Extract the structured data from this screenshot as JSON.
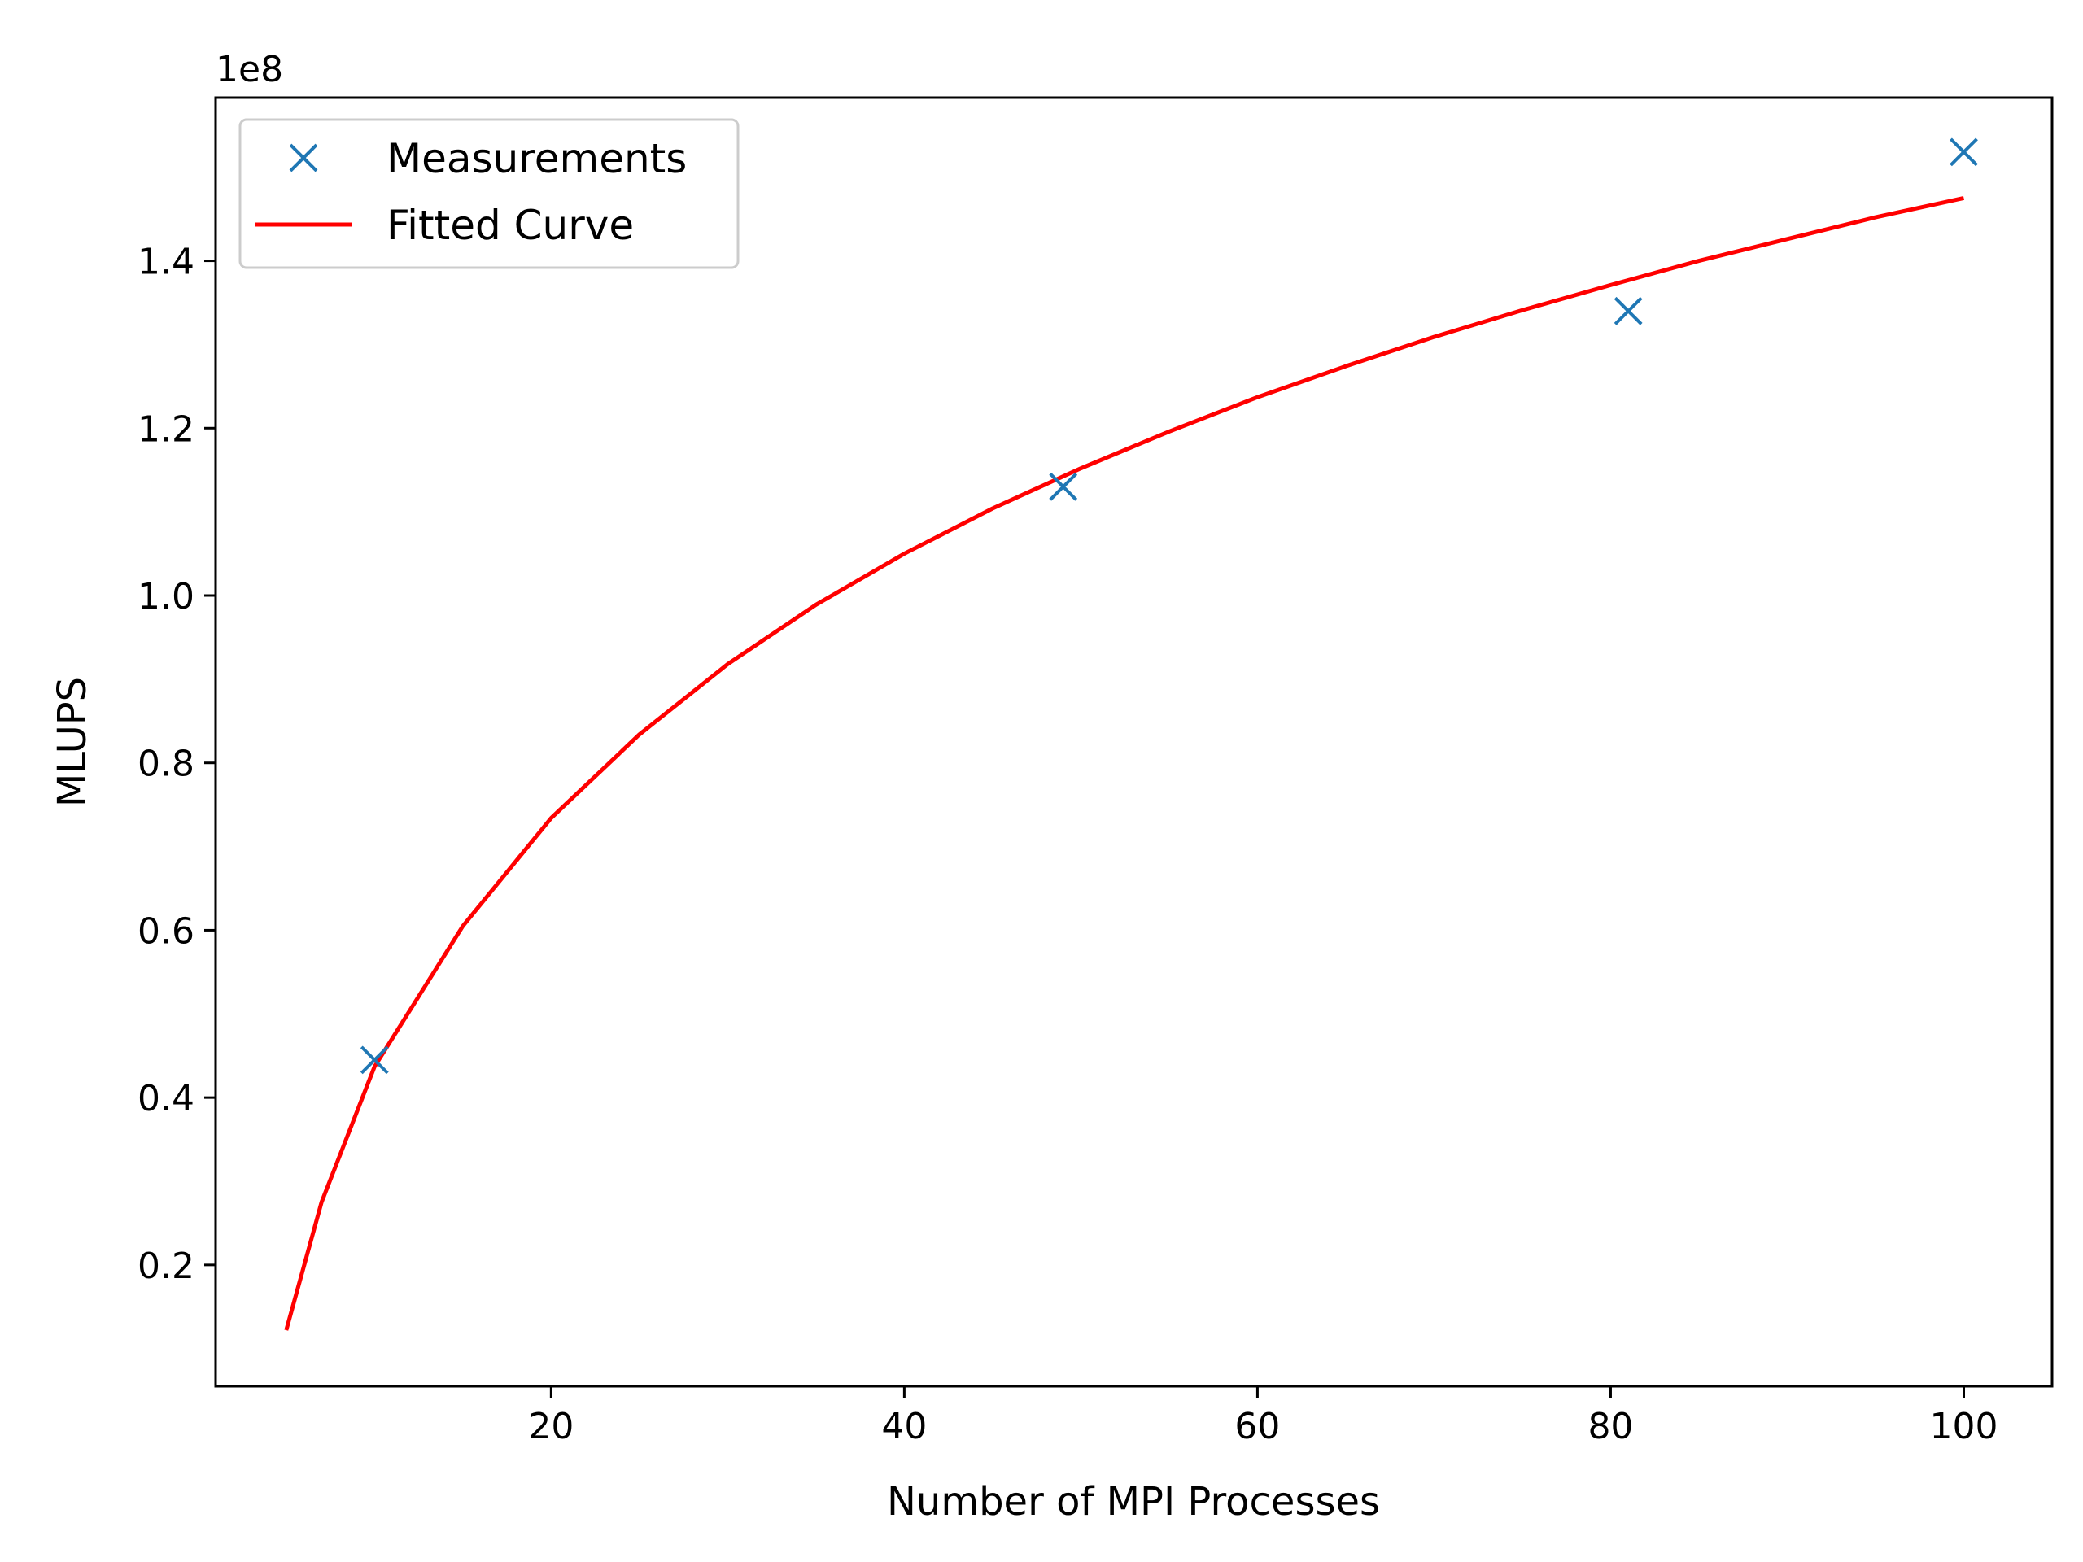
{
  "chart_data": {
    "type": "line",
    "title": "",
    "xlabel": "Number of MPI Processes",
    "ylabel": "MLUPS",
    "y_offset_label": "1e8",
    "xlim": [
      1,
      105
    ],
    "ylim": [
      0.055,
      1.595
    ],
    "x_ticks": [
      20,
      40,
      60,
      80,
      100
    ],
    "x_tick_labels": [
      "20",
      "40",
      "60",
      "80",
      "100"
    ],
    "y_ticks": [
      0.2,
      0.4,
      0.6,
      0.8,
      1.0,
      1.2,
      1.4
    ],
    "y_tick_labels": [
      "0.2",
      "0.4",
      "0.6",
      "0.8",
      "1.0",
      "1.2",
      "1.4"
    ],
    "grid": false,
    "legend_position": "top-left",
    "series": [
      {
        "name": "Measurements",
        "kind": "scatter",
        "marker": "x",
        "color": "#1f77b4",
        "x": [
          10,
          49,
          81,
          100
        ],
        "y": [
          0.445,
          1.13,
          1.34,
          1.53
        ]
      },
      {
        "name": "Fitted Curve",
        "kind": "line",
        "color": "#ff0000",
        "x": [
          5,
          7,
          10,
          15,
          20,
          25,
          30,
          35,
          40,
          45,
          50,
          55,
          60,
          65,
          70,
          75,
          80,
          85,
          90,
          95,
          100
        ],
        "y": [
          0.122,
          0.275,
          0.437,
          0.605,
          0.734,
          0.834,
          0.918,
          0.989,
          1.05,
          1.104,
          1.152,
          1.196,
          1.237,
          1.274,
          1.309,
          1.341,
          1.371,
          1.4,
          1.426,
          1.452,
          1.475
        ]
      }
    ]
  }
}
